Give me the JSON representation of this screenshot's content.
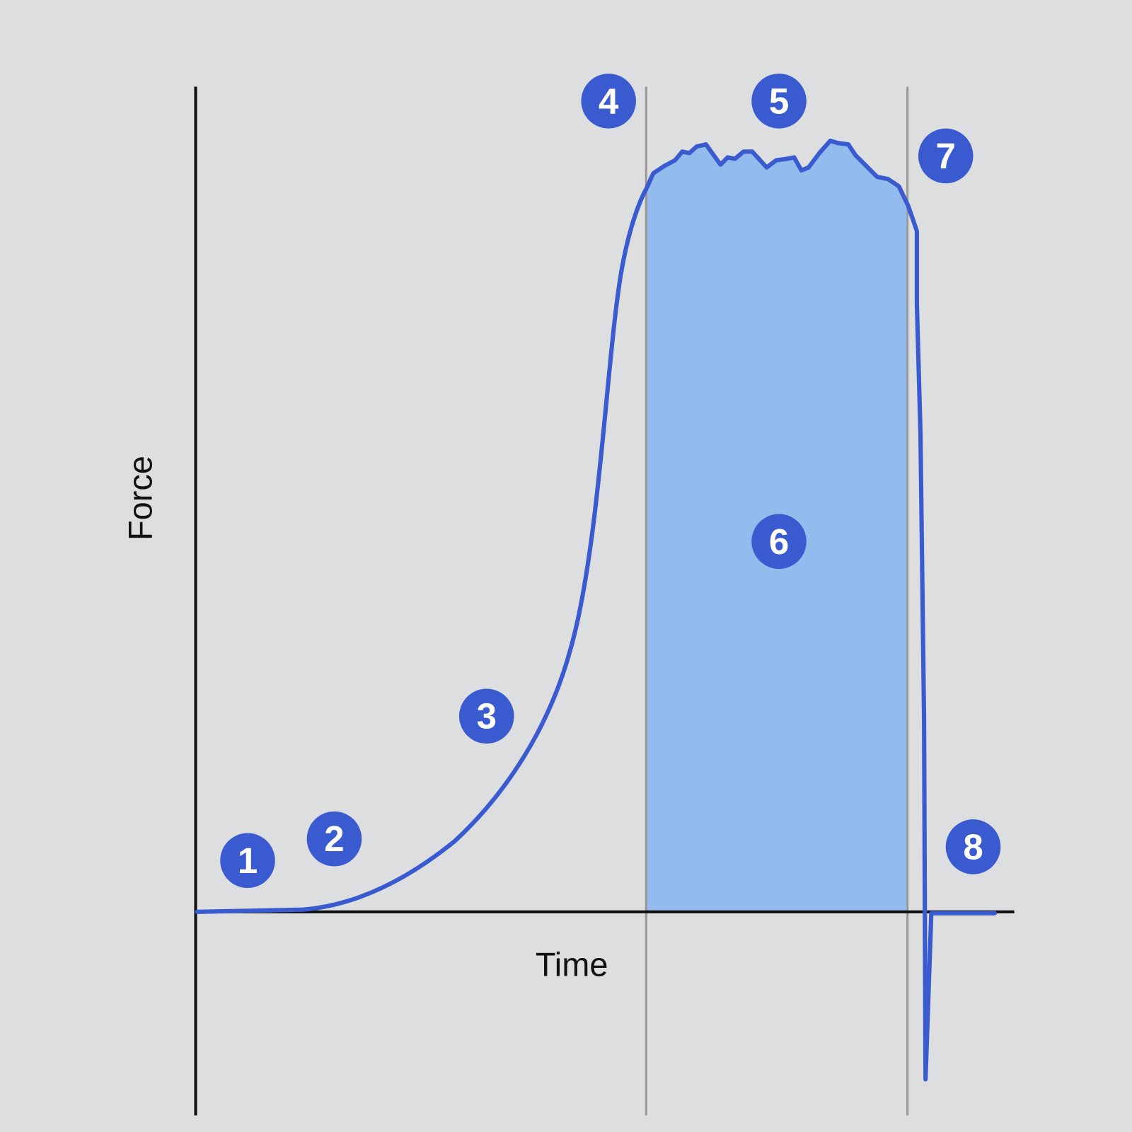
{
  "axes": {
    "y_label": "Force",
    "x_label": "Time"
  },
  "markers": [
    "1",
    "2",
    "3",
    "4",
    "5",
    "6",
    "7",
    "8"
  ]
}
